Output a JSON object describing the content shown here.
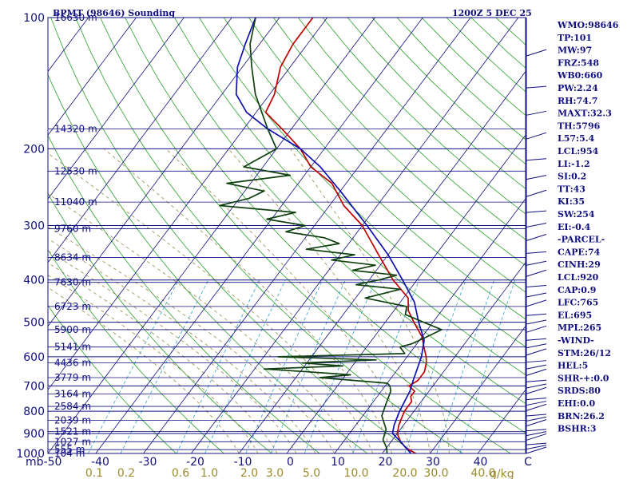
{
  "chart_data": {
    "type": "line",
    "chart_kind": "Skew-T log-P sounding",
    "title": "BPMT (98646) Sounding",
    "valid_time": "1200Z  5 DEC 25",
    "pressure_unit_label": "mb",
    "mixing_unit_label": "g/kg",
    "pressure_range": [
      1000,
      100
    ],
    "temperature_range": [
      -50,
      50
    ],
    "pressure_levels": [
      1000,
      900,
      800,
      700,
      600,
      500,
      400,
      300,
      200,
      100
    ],
    "height_levels": [
      {
        "p": 1000,
        "label": "104 m"
      },
      {
        "p": 980,
        "label": "555 m"
      },
      {
        "p": 940,
        "label": "1027 m"
      },
      {
        "p": 890,
        "label": "1521 m"
      },
      {
        "p": 840,
        "label": "2039 m"
      },
      {
        "p": 780,
        "label": "2584 m"
      },
      {
        "p": 730,
        "label": "3164 m"
      },
      {
        "p": 670,
        "label": "3779 m"
      },
      {
        "p": 620,
        "label": "4436 m"
      },
      {
        "p": 570,
        "label": "5141 m"
      },
      {
        "p": 520,
        "label": "5900 m"
      },
      {
        "p": 460,
        "label": "6723 m"
      },
      {
        "p": 405,
        "label": "7630 m"
      },
      {
        "p": 355,
        "label": "8634 m"
      },
      {
        "p": 305,
        "label": "9760 m"
      },
      {
        "p": 265,
        "label": "11040 m"
      },
      {
        "p": 225,
        "label": "12530 m"
      },
      {
        "p": 180,
        "label": "14320 m"
      },
      {
        "p": 100,
        "label": "16630 m"
      }
    ],
    "temperature_ticks": [
      "-50",
      "-40",
      "-30",
      "-20",
      "-10",
      "0",
      "10",
      "20",
      "30",
      "40",
      "C"
    ],
    "mixing_ratio_ticks": [
      "0.1",
      "0.2",
      "0.6",
      "1.0",
      "2.0",
      "3.0",
      "5.0",
      "10.0",
      "20.0",
      "30.0",
      "40.0"
    ],
    "series": [
      {
        "name": "Temperature",
        "color": "#c00000",
        "points": [
          [
            1000,
            27
          ],
          [
            970,
            24
          ],
          [
            940,
            22
          ],
          [
            900,
            20
          ],
          [
            860,
            19
          ],
          [
            800,
            18
          ],
          [
            760,
            18
          ],
          [
            740,
            17
          ],
          [
            720,
            17
          ],
          [
            700,
            15
          ],
          [
            680,
            16
          ],
          [
            650,
            16
          ],
          [
            620,
            15
          ],
          [
            600,
            14
          ],
          [
            570,
            12
          ],
          [
            540,
            10
          ],
          [
            500,
            6
          ],
          [
            470,
            3
          ],
          [
            440,
            1
          ],
          [
            400,
            -5
          ],
          [
            350,
            -12
          ],
          [
            300,
            -20
          ],
          [
            270,
            -27
          ],
          [
            240,
            -33
          ],
          [
            220,
            -40
          ],
          [
            200,
            -45
          ],
          [
            180,
            -52
          ],
          [
            165,
            -58
          ],
          [
            150,
            -59
          ],
          [
            130,
            -62
          ],
          [
            115,
            -63
          ],
          [
            100,
            -63
          ]
        ]
      },
      {
        "name": "Parcel",
        "color": "#1010b0",
        "points": [
          [
            1000,
            26
          ],
          [
            940,
            22
          ],
          [
            900,
            19
          ],
          [
            860,
            18
          ],
          [
            800,
            17
          ],
          [
            720,
            16
          ],
          [
            680,
            15
          ],
          [
            600,
            13
          ],
          [
            550,
            11
          ],
          [
            500,
            7
          ],
          [
            450,
            3
          ],
          [
            400,
            -3
          ],
          [
            350,
            -10
          ],
          [
            300,
            -19
          ],
          [
            250,
            -30
          ],
          [
            220,
            -38
          ],
          [
            200,
            -45
          ],
          [
            180,
            -55
          ],
          [
            165,
            -62
          ],
          [
            150,
            -67
          ],
          [
            130,
            -71
          ],
          [
            115,
            -73
          ],
          [
            100,
            -75
          ]
        ]
      },
      {
        "name": "Dewpoint",
        "color": "#104010",
        "points": [
          [
            1000,
            21
          ],
          [
            970,
            20
          ],
          [
            930,
            18
          ],
          [
            880,
            17
          ],
          [
            820,
            14
          ],
          [
            770,
            13
          ],
          [
            720,
            12
          ],
          [
            700,
            11
          ],
          [
            690,
            10
          ],
          [
            670,
            -5
          ],
          [
            660,
            1
          ],
          [
            650,
            -8
          ],
          [
            640,
            -18
          ],
          [
            630,
            -2
          ],
          [
            620,
            -11
          ],
          [
            610,
            4
          ],
          [
            600,
            -17
          ],
          [
            590,
            9
          ],
          [
            570,
            7
          ],
          [
            560,
            9
          ],
          [
            540,
            11
          ],
          [
            520,
            13
          ],
          [
            500,
            8
          ],
          [
            480,
            3
          ],
          [
            460,
            2
          ],
          [
            440,
            -8
          ],
          [
            420,
            -2
          ],
          [
            410,
            -12
          ],
          [
            400,
            -8
          ],
          [
            390,
            -5
          ],
          [
            380,
            -15
          ],
          [
            370,
            -11
          ],
          [
            360,
            -21
          ],
          [
            350,
            -17
          ],
          [
            340,
            -28
          ],
          [
            330,
            -22
          ],
          [
            320,
            -26
          ],
          [
            310,
            -35
          ],
          [
            300,
            -32
          ],
          [
            290,
            -41
          ],
          [
            280,
            -36
          ],
          [
            270,
            -53
          ],
          [
            260,
            -48
          ],
          [
            250,
            -46
          ],
          [
            240,
            -55
          ],
          [
            230,
            -43
          ],
          [
            220,
            -54
          ],
          [
            200,
            -50
          ],
          [
            180,
            -55
          ],
          [
            150,
            -63
          ],
          [
            130,
            -68
          ],
          [
            115,
            -72
          ],
          [
            100,
            -75
          ]
        ]
      }
    ]
  },
  "indices": [
    "WMO:98646",
    "TP:101",
    "MW:97",
    "FRZ:548",
    "WB0:660",
    "PW:2.24",
    "RH:74.7",
    "MAXT:32.3",
    "TH:5796",
    "L57:5.4",
    "LCL:954",
    "LI:-1.2",
    "SI:0.2",
    "TT:43",
    "KI:35",
    "SW:254",
    "EI:-0.4",
    "-PARCEL-",
    "CAPE:74",
    "CINH:29",
    "LCL:920",
    "CAP:0.9",
    "LFC:765",
    "EL:695",
    "MPL:265",
    "-WIND-",
    "STM:26/12",
    "HEL:5",
    "SHR-+:0.0",
    "SRDS:80",
    "EHI:0.0",
    "BRN:26.2",
    "BSHR:3"
  ]
}
